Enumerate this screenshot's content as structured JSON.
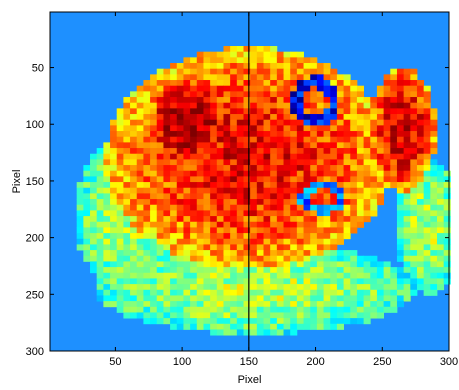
{
  "chart_data": {
    "type": "heatmap",
    "title": "",
    "xlabel": "Pixel",
    "ylabel": "Pixel",
    "xlim": [
      1,
      300
    ],
    "ylim": [
      1,
      300
    ],
    "y_reversed": true,
    "x_ticks": [
      50,
      100,
      150,
      200,
      250,
      300
    ],
    "y_ticks": [
      50,
      100,
      150,
      200,
      250,
      300
    ],
    "colormap": "jet",
    "background_color": "#1e90ff",
    "vertical_line_x": 150,
    "grid": false,
    "blobs": [
      {
        "cx": 150,
        "cy": 130,
        "rx": 108,
        "ry": 98,
        "v": 0.88
      },
      {
        "cx": 105,
        "cy": 100,
        "rx": 30,
        "ry": 40,
        "v": 1.0
      },
      {
        "cx": 265,
        "cy": 105,
        "rx": 25,
        "ry": 55,
        "v": 0.93
      },
      {
        "cx": 200,
        "cy": 80,
        "rx": 32,
        "ry": 22,
        "v": 0.32
      },
      {
        "cx": 210,
        "cy": 170,
        "rx": 30,
        "ry": 25,
        "v": 0.38
      },
      {
        "cx": 155,
        "cy": 135,
        "rx": 20,
        "ry": 40,
        "v": 0.47
      },
      {
        "cx": 155,
        "cy": 245,
        "rx": 120,
        "ry": 40,
        "v": 0.55
      },
      {
        "cx": 60,
        "cy": 180,
        "rx": 40,
        "ry": 70,
        "v": 0.55
      },
      {
        "cx": 285,
        "cy": 190,
        "rx": 25,
        "ry": 60,
        "v": 0.55
      }
    ],
    "dark_arcs": [
      {
        "cx": 200,
        "cy": 80,
        "rx": 18,
        "ry": 22,
        "v": 0.12
      },
      {
        "cx": 205,
        "cy": 165,
        "rx": 18,
        "ry": 14,
        "v": 0.25
      }
    ]
  }
}
